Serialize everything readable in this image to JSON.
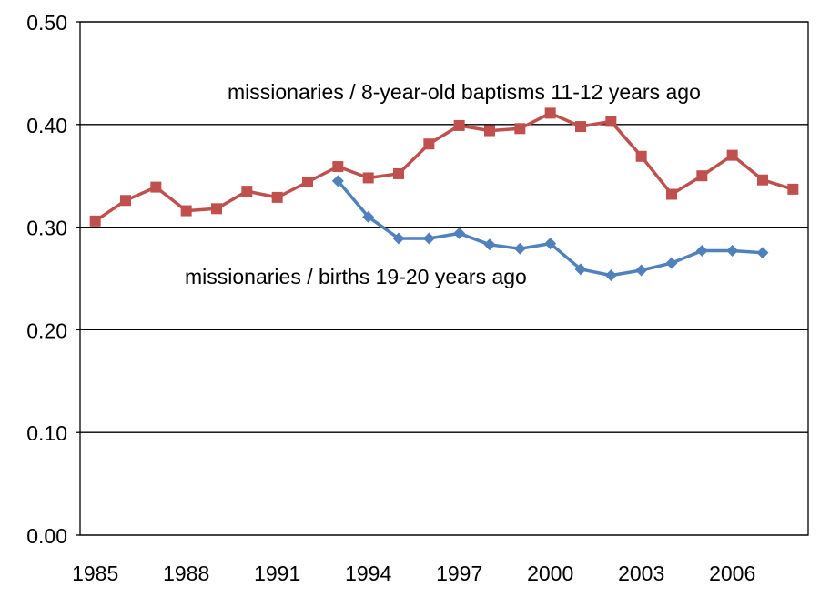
{
  "chart_data": {
    "type": "line",
    "x_ticks": [
      1985,
      1988,
      1991,
      1994,
      1997,
      2000,
      2003,
      2006
    ],
    "xlim": [
      1984.5,
      2008.5
    ],
    "ylim": [
      0,
      0.5
    ],
    "y_ticks": [
      "0.00",
      "0.10",
      "0.20",
      "0.30",
      "0.40",
      "0.50"
    ],
    "grid": "horizontal",
    "series": [
      {
        "name": "missionaries / 8-year-old baptisms 11-12 years ago",
        "color": "#C0504D",
        "marker": "square",
        "x": [
          1985,
          1986,
          1987,
          1988,
          1989,
          1990,
          1991,
          1992,
          1993,
          1994,
          1995,
          1996,
          1997,
          1998,
          1999,
          2000,
          2001,
          2002,
          2003,
          2004,
          2005,
          2006,
          2007,
          2008
        ],
        "y": [
          0.306,
          0.326,
          0.339,
          0.316,
          0.318,
          0.335,
          0.329,
          0.344,
          0.359,
          0.348,
          0.352,
          0.381,
          0.399,
          0.394,
          0.396,
          0.411,
          0.398,
          0.403,
          0.369,
          0.332,
          0.35,
          0.37,
          0.346,
          0.337
        ]
      },
      {
        "name": "missionaries / births 19-20 years ago",
        "color": "#4F81BD",
        "marker": "diamond",
        "x": [
          1993,
          1994,
          1995,
          1996,
          1997,
          1998,
          1999,
          2000,
          2001,
          2002,
          2003,
          2004,
          2005,
          2006,
          2007
        ],
        "y": [
          0.345,
          0.31,
          0.289,
          0.289,
          0.294,
          0.283,
          0.279,
          0.284,
          0.259,
          0.253,
          0.258,
          0.265,
          0.277,
          0.277,
          0.275
        ]
      }
    ]
  }
}
